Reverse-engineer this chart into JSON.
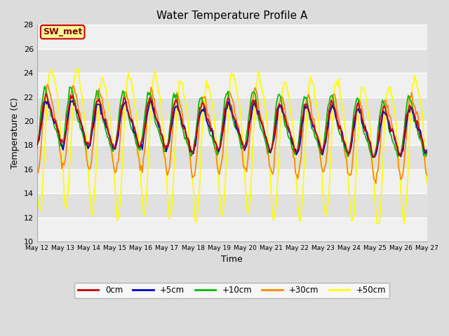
{
  "title": "Water Temperature Profile A",
  "xlabel": "Time",
  "ylabel": "Temperature (C)",
  "ylim": [
    10,
    28
  ],
  "annotation_text": "SW_met",
  "annotation_bg": "#FFFF99",
  "annotation_border": "#CC0000",
  "series_colors": {
    "0cm": "#CC0000",
    "5cm": "#0000CC",
    "10cm": "#00BB00",
    "30cm": "#FF8800",
    "50cm": "#FFFF00"
  },
  "series_labels": [
    "0cm",
    "+5cm",
    "+10cm",
    "+30cm",
    "+50cm"
  ],
  "tick_labels": [
    "May 12",
    "May 13",
    "May 14",
    "May 15",
    "May 16",
    "May 17",
    "May 18",
    "May 19",
    "May 20",
    "May 21",
    "May 22",
    "May 23",
    "May 24",
    "May 25",
    "May 26",
    "May 27"
  ],
  "yticks": [
    10,
    12,
    14,
    16,
    18,
    20,
    22,
    24,
    26,
    28
  ],
  "bg_color": "#DCDCDC",
  "plot_bg_light": "#F0F0F0",
  "plot_bg_dark": "#E0E0E0",
  "grid_color": "#FFFFFF",
  "linewidth": 1.3
}
